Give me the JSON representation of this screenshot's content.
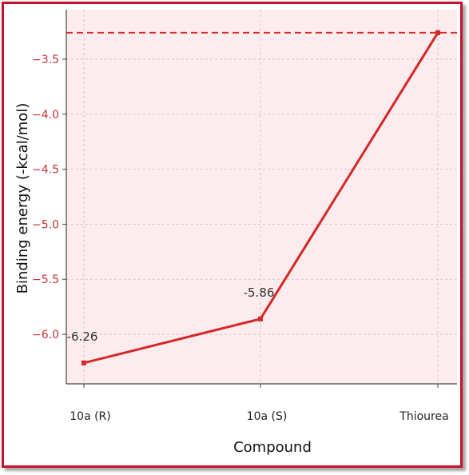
{
  "chart_data": {
    "type": "line",
    "categories": [
      "10a (R)",
      "10a (S)",
      "Thiourea"
    ],
    "series": [
      {
        "values": [
          -6.26,
          -5.86,
          -3.26
        ]
      }
    ],
    "data_labels": [
      "-6.26",
      "-5.86",
      ""
    ],
    "reference_line": {
      "y": -3.26,
      "style": "dashed",
      "color": "#d62728"
    },
    "xlabel": "Compound",
    "ylabel": "Binding energy (-kcal/mol)",
    "ylim": [
      -6.45,
      -3.05
    ],
    "yticks": [
      -6.0,
      -5.5,
      -5.0,
      -4.5,
      -4.0,
      -3.5
    ],
    "ytick_labels": [
      "−6.0",
      "−5.5",
      "−5.0",
      "−4.5",
      "−4.0",
      "−3.5"
    ],
    "grid": true,
    "colors": {
      "line": "#d62728",
      "plot_background": "#fdeced",
      "ytick_color": "#c8323a",
      "frame_border": "#c8102e"
    }
  }
}
